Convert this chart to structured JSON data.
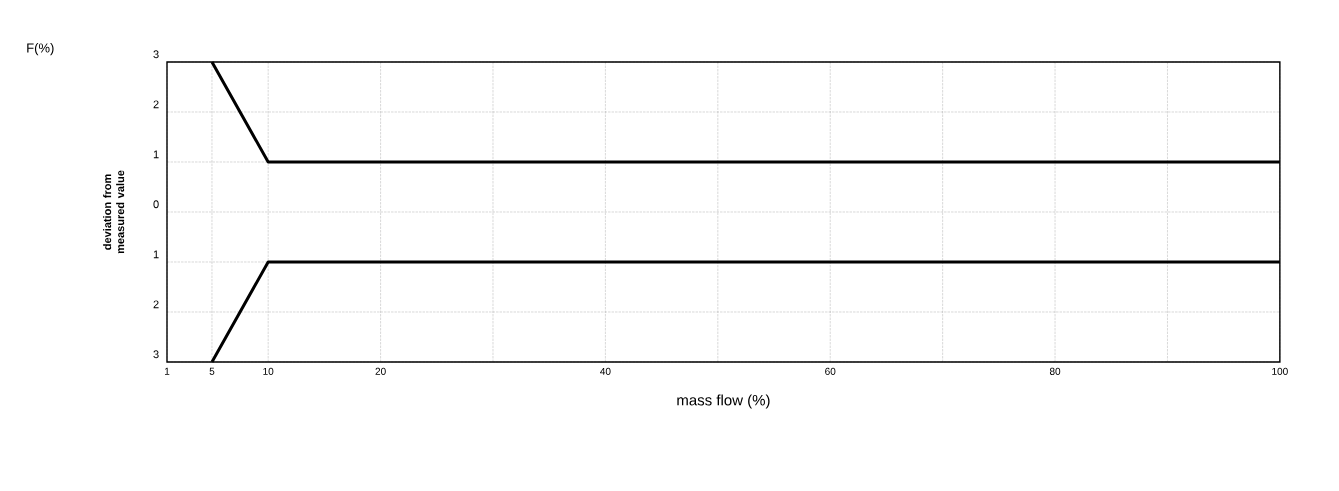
{
  "chart_data": {
    "type": "line",
    "xlabel": "mass flow  (%)",
    "ylabel": "deviation from measured value",
    "annotations": [
      "F(%)"
    ],
    "xlim": [
      1,
      100
    ],
    "ylim": [
      -3,
      3
    ],
    "xticks": [
      1,
      5,
      10,
      20,
      {
        "value": 30,
        "label": null
      },
      40,
      {
        "value": 50,
        "label": null
      },
      60,
      {
        "value": 70,
        "label": null
      },
      80,
      {
        "value": 90,
        "label": null
      },
      100
    ],
    "yticks": [
      {
        "value": -3,
        "label": "3"
      },
      {
        "value": -2,
        "label": "2"
      },
      {
        "value": -1,
        "label": "1"
      },
      0,
      1,
      2,
      3
    ],
    "grid": true,
    "marker": "none",
    "line_style": "solid",
    "series": [
      {
        "color": "#000000",
        "x": [
          5,
          10,
          100
        ],
        "values": [
          3,
          1,
          1
        ]
      },
      {
        "color": "#000000",
        "x": [
          5,
          10,
          100
        ],
        "values": [
          -3,
          -1,
          -1
        ]
      }
    ]
  }
}
